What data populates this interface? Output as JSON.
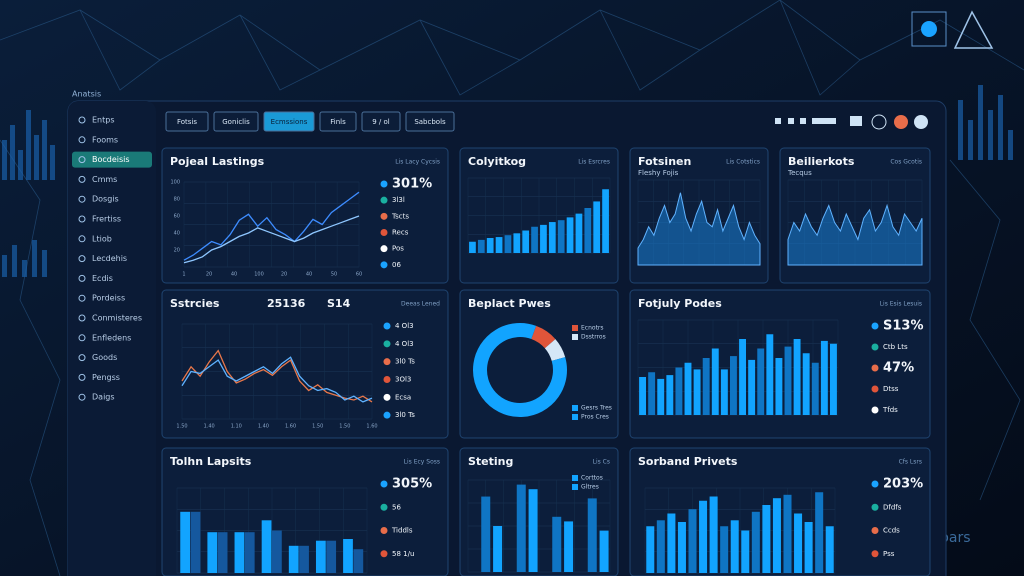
{
  "brand": "Anatsis",
  "sidebar": [
    "Entps",
    "Fooms",
    "Bocdeisis",
    "Cmms",
    "Dosgis",
    "Frertiss",
    "Ltiob",
    "Lecdehis",
    "Ecdis",
    "Pordeiss",
    "Conmisteres",
    "Enfledens",
    "Goods",
    "Pengss",
    "Daigs"
  ],
  "sidebar_active": 2,
  "tabs": [
    "Fotsis",
    "Goniclis",
    "Ecmssions",
    "Finls",
    "9 / ol",
    "Sabcbols"
  ],
  "tabs_active": 2,
  "watermark": "pars",
  "panels": [
    {
      "title": "Pojeal Lastings",
      "subtitle": "Lis Lacy Cycsis",
      "type": "line",
      "ylim": [
        0,
        100
      ],
      "yticks": [
        "100",
        "80",
        "60",
        "40",
        "20"
      ],
      "xlabels": [
        "1",
        "20",
        "40",
        "100",
        "20",
        "40",
        "50",
        "60"
      ],
      "side": [
        "301%",
        "3l3l",
        "Tscts",
        "Recs",
        "Pos",
        "06"
      ],
      "series": [
        {
          "color": "#3d8cff",
          "values": [
            8,
            14,
            22,
            30,
            26,
            38,
            55,
            62,
            48,
            58,
            44,
            38,
            30,
            42,
            56,
            50,
            64,
            72,
            80,
            88
          ]
        },
        {
          "color": "#8fc7ff",
          "values": [
            5,
            8,
            12,
            20,
            24,
            30,
            36,
            40,
            46,
            42,
            38,
            34,
            30,
            34,
            40,
            44,
            48,
            52,
            56,
            60
          ]
        }
      ]
    },
    {
      "title": "Colyitkog",
      "subtitle": "Lis Esrcres",
      "type": "bar",
      "ylim": [
        0,
        80
      ],
      "series": [
        {
          "color": "#12a4ff",
          "values": [
            12,
            14,
            16,
            17,
            19,
            21,
            24,
            28,
            30,
            33,
            35,
            38,
            42,
            48,
            55,
            68
          ]
        }
      ]
    },
    {
      "title": "Fotsinen",
      "subtitle": "Lis Cotstics",
      "stat": "Fleshy Fojis",
      "type": "area",
      "ylim": [
        0,
        100
      ],
      "series": [
        {
          "color": "#1a7fd6",
          "values": [
            20,
            30,
            45,
            35,
            55,
            70,
            50,
            60,
            85,
            55,
            40,
            60,
            75,
            50,
            45,
            65,
            40,
            55,
            70,
            45,
            30,
            50,
            35,
            25
          ]
        }
      ]
    },
    {
      "title": "Beilierkots",
      "subtitle": "Cos Gcotis",
      "stat": "Tecqus",
      "type": "area",
      "ylim": [
        0,
        100
      ],
      "series": [
        {
          "color": "#1a7fd6",
          "values": [
            30,
            50,
            40,
            60,
            45,
            35,
            55,
            70,
            50,
            40,
            60,
            45,
            30,
            55,
            65,
            40,
            50,
            70,
            45,
            35,
            60,
            50,
            40,
            55
          ]
        }
      ]
    },
    {
      "title": "Sstrcies",
      "stats": [
        "25136",
        "S14"
      ],
      "subtitle": "Deeas Lened",
      "type": "line",
      "ylim": [
        0,
        100
      ],
      "xlabels": [
        "1.50",
        "1.40",
        "1.10",
        "1.40",
        "1.60",
        "1.50",
        "1.50",
        "1.60"
      ],
      "side": [
        "4 Ol3",
        "4 Ol3",
        "3l0 Ts",
        "3Ol3",
        "Ecsa",
        "3l0 Ts"
      ],
      "series": [
        {
          "color": "#e8774a",
          "values": [
            40,
            55,
            45,
            60,
            72,
            50,
            38,
            42,
            48,
            52,
            46,
            55,
            62,
            40,
            30,
            36,
            28,
            25,
            22,
            20,
            24,
            18
          ]
        },
        {
          "color": "#5fb2ff",
          "values": [
            35,
            50,
            48,
            55,
            62,
            45,
            40,
            45,
            50,
            55,
            48,
            58,
            65,
            45,
            35,
            30,
            32,
            28,
            20,
            24,
            18,
            22
          ]
        }
      ]
    },
    {
      "title": "Beplact Pwes",
      "type": "donut",
      "legend": [
        "Ecnotrs",
        "Dsstrros",
        "Gesrs Tres",
        "Pros Cres"
      ],
      "series": [
        {
          "color": "#e0553a",
          "values": [
            8
          ]
        },
        {
          "color": "#d5e7f7",
          "values": [
            7
          ]
        },
        {
          "color": "#12a4ff",
          "values": [
            85
          ]
        }
      ]
    },
    {
      "title": "Fotjuly Podes",
      "subtitle": "Lis Esis Lesuis",
      "type": "bar",
      "ylim": [
        0,
        100
      ],
      "side": [
        "S13%",
        "Ctb Lts",
        "47%",
        "Dtss",
        "Tfds"
      ],
      "series": [
        {
          "color": "#12a4ff",
          "values": [
            40,
            45,
            38,
            42,
            50,
            55,
            48,
            60,
            70,
            48,
            62,
            80,
            58,
            70,
            85,
            60,
            72,
            80,
            65,
            55,
            78,
            75
          ]
        }
      ]
    },
    {
      "title": "Tolhn Lapsits",
      "subtitle": "Lis Ecy Soss",
      "type": "grouped",
      "ylim": [
        0,
        100
      ],
      "side": [
        "305%",
        "56",
        "Tiddls",
        "58 1/u"
      ],
      "series": [
        {
          "color": "#12a4ff",
          "values": [
            72,
            48,
            48,
            62,
            32,
            38,
            40
          ]
        },
        {
          "color": "#15589e",
          "values": [
            72,
            48,
            48,
            50,
            32,
            38,
            28
          ]
        }
      ]
    },
    {
      "title": "Steting",
      "subtitle": "Lis Cs",
      "type": "bar",
      "ylim": [
        0,
        100
      ],
      "legend": [
        "Corttos",
        "Gltres"
      ],
      "series": [
        {
          "color": "#12a4ff",
          "values": [
            0,
            82,
            50,
            0,
            95,
            90,
            0,
            60,
            55,
            0,
            80,
            45
          ]
        }
      ]
    },
    {
      "title": "Sorband Privets",
      "subtitle": "Cfs Lsrs",
      "type": "bar",
      "ylim": [
        0,
        100
      ],
      "side": [
        "203%",
        "Dfdfs",
        "Ccds",
        "Pss"
      ],
      "series": [
        {
          "color": "#12a4ff",
          "values": [
            55,
            62,
            70,
            60,
            75,
            85,
            90,
            55,
            62,
            50,
            72,
            80,
            88,
            92,
            70,
            60,
            95,
            55
          ]
        }
      ]
    }
  ]
}
